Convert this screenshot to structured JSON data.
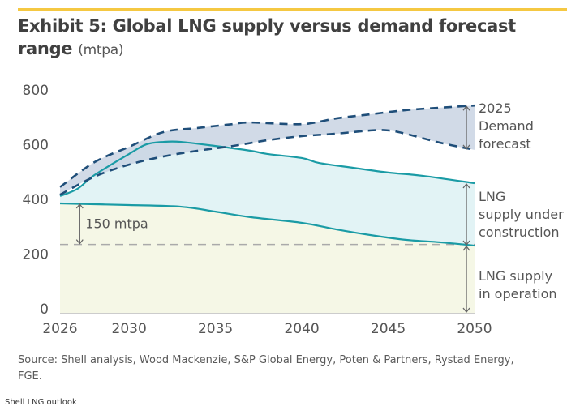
{
  "header": {
    "title_bold": "Exhibit 5: Global LNG supply versus demand forecast range",
    "title_unit": "(mtpa)"
  },
  "colors": {
    "accent_bar": "#f5c842",
    "demand_line": "#1f4e79",
    "demand_fill": "#c9d3e3",
    "supply_line": "#1a9ba5",
    "construction_fill": "#e2f3f5",
    "operation_fill": "#f5f7e6",
    "reference_line": "#aaaaaa",
    "annotation_arrow": "#666666"
  },
  "chart_data": {
    "type": "area",
    "title": "Exhibit 5: Global LNG supply versus demand forecast range (mtpa)",
    "xlabel": "",
    "ylabel": "mtpa",
    "xlim": [
      2026,
      2050
    ],
    "ylim": [
      0,
      800
    ],
    "x_ticks": [
      2026,
      2030,
      2035,
      2040,
      2045,
      2050
    ],
    "y_ticks": [
      0,
      200,
      400,
      600,
      800
    ],
    "grid": false,
    "series": [
      {
        "name": "2025 Demand forecast (high)",
        "style": "dashed",
        "points": [
          [
            2026,
            460
          ],
          [
            2028,
            551
          ],
          [
            2030,
            607
          ],
          [
            2032,
            661
          ],
          [
            2034,
            676
          ],
          [
            2036,
            690
          ],
          [
            2037,
            696
          ],
          [
            2040,
            690
          ],
          [
            2042,
            711
          ],
          [
            2044,
            726
          ],
          [
            2046,
            741
          ],
          [
            2048,
            750
          ],
          [
            2050,
            758
          ]
        ]
      },
      {
        "name": "2025 Demand forecast (low)",
        "style": "dashed",
        "points": [
          [
            2026,
            432
          ],
          [
            2028,
            498
          ],
          [
            2030,
            542
          ],
          [
            2032,
            572
          ],
          [
            2034,
            593
          ],
          [
            2036,
            610
          ],
          [
            2038,
            631
          ],
          [
            2040,
            646
          ],
          [
            2042,
            655
          ],
          [
            2044,
            667
          ],
          [
            2045,
            667
          ],
          [
            2046,
            655
          ],
          [
            2048,
            622
          ],
          [
            2050,
            596
          ]
        ]
      },
      {
        "name": "LNG supply under construction (total supply)",
        "style": "solid",
        "points": [
          [
            2026,
            427
          ],
          [
            2027,
            453
          ],
          [
            2028,
            504
          ],
          [
            2030,
            581
          ],
          [
            2031,
            616
          ],
          [
            2032,
            625
          ],
          [
            2033,
            625
          ],
          [
            2035,
            610
          ],
          [
            2037,
            593
          ],
          [
            2038,
            581
          ],
          [
            2040,
            566
          ],
          [
            2041,
            548
          ],
          [
            2043,
            530
          ],
          [
            2045,
            513
          ],
          [
            2047,
            501
          ],
          [
            2050,
            474
          ]
        ]
      },
      {
        "name": "LNG supply in operation",
        "style": "solid",
        "points": [
          [
            2026,
            400
          ],
          [
            2028,
            397
          ],
          [
            2030,
            394
          ],
          [
            2033,
            388
          ],
          [
            2035,
            370
          ],
          [
            2037,
            350
          ],
          [
            2040,
            329
          ],
          [
            2042,
            305
          ],
          [
            2044,
            284
          ],
          [
            2046,
            267
          ],
          [
            2048,
            258
          ],
          [
            2050,
            246
          ]
        ]
      }
    ],
    "reference_line": {
      "value": 250,
      "style": "dashed"
    },
    "annotations": [
      {
        "text": "150 mtpa",
        "from": 400,
        "to": 250,
        "year": 2027
      },
      {
        "lines": [
          "2025",
          "Demand",
          "forecast"
        ],
        "from": 758,
        "to": 596,
        "year": 2050
      },
      {
        "lines": [
          "LNG",
          "supply under",
          "construction"
        ],
        "from": 474,
        "to": 246,
        "year": 2050
      },
      {
        "lines": [
          "LNG supply",
          "in operation"
        ],
        "from": 246,
        "to": 0,
        "year": 2050
      }
    ]
  },
  "footer": {
    "source": "Source: Shell analysis, Wood Mackenzie, S&P Global Energy, Poten & Partners, Rystad Energy, FGE.",
    "caption": "Shell LNG outlook"
  }
}
